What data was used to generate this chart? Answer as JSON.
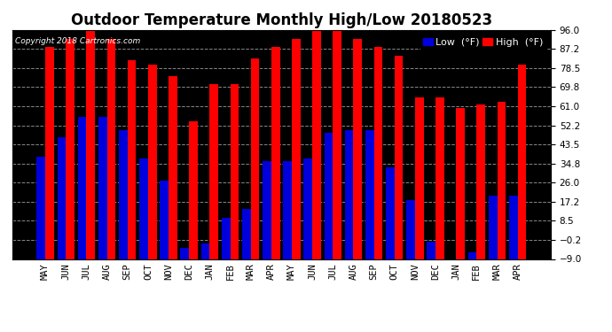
{
  "title": "Outdoor Temperature Monthly High/Low 20180523",
  "copyright": "Copyright 2018 Cartronics.com",
  "months": [
    "MAY",
    "JUN",
    "JUL",
    "AUG",
    "SEP",
    "OCT",
    "NOV",
    "DEC",
    "JAN",
    "FEB",
    "MAR",
    "APR",
    "MAY",
    "JUN",
    "JUL",
    "AUG",
    "SEP",
    "OCT",
    "NOV",
    "DEC",
    "JAN",
    "FEB",
    "MAR",
    "APR"
  ],
  "highs": [
    88,
    92,
    96,
    92,
    82,
    80,
    75,
    54,
    71,
    71,
    83,
    88,
    92,
    96,
    96,
    92,
    88,
    84,
    65,
    65,
    60,
    62,
    63,
    80
  ],
  "lows": [
    38,
    47,
    56,
    56,
    50,
    37,
    27,
    -4,
    -2,
    10,
    14,
    36,
    36,
    37,
    49,
    50,
    50,
    33,
    18,
    -1,
    -9,
    -6,
    20,
    20
  ],
  "high_color": "#ff0000",
  "low_color": "#0000dd",
  "plot_bg_color": "#000000",
  "fig_bg_color": "#ffffff",
  "grid_color": "#888888",
  "ylim": [
    -9.0,
    96.0
  ],
  "yticks": [
    -9.0,
    -0.2,
    8.5,
    17.2,
    26.0,
    34.8,
    43.5,
    52.2,
    61.0,
    69.8,
    78.5,
    87.2,
    96.0
  ],
  "bar_width": 0.42,
  "title_fontsize": 12,
  "tick_fontsize": 7.5,
  "legend_fontsize": 8
}
